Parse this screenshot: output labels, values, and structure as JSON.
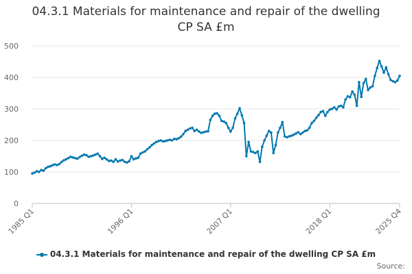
{
  "chart_data": {
    "type": "line",
    "title_line1": "04.3.1 Materials for maintenance and repair of the dwelling",
    "title_line2": "CP SA £m",
    "xlabel": "",
    "ylabel": "",
    "ylim": [
      0,
      500
    ],
    "yticks": [
      0,
      100,
      200,
      300,
      400,
      500
    ],
    "xlim": [
      1985.0,
      2025.75
    ],
    "xticks": [
      {
        "x": 1985.0,
        "label": "1985 Q1"
      },
      {
        "x": 1996.0,
        "label": "1996 Q1"
      },
      {
        "x": 2007.0,
        "label": "2007 Q1"
      },
      {
        "x": 2018.0,
        "label": "2018 Q1"
      },
      {
        "x": 2025.75,
        "label": "2025 Q4"
      }
    ],
    "grid": true,
    "legend_position": "bottom",
    "color": "#0077b0",
    "series": [
      {
        "name": "04.3.1 Materials for maintenance and repair of the dwelling CP SA £m",
        "points": [
          [
            1985.0,
            95
          ],
          [
            1985.25,
            98
          ],
          [
            1985.5,
            102
          ],
          [
            1985.75,
            100
          ],
          [
            1986.0,
            106
          ],
          [
            1986.25,
            104
          ],
          [
            1986.5,
            112
          ],
          [
            1986.75,
            116
          ],
          [
            1987.0,
            118
          ],
          [
            1987.25,
            121
          ],
          [
            1987.5,
            124
          ],
          [
            1987.75,
            122
          ],
          [
            1988.0,
            125
          ],
          [
            1988.25,
            132
          ],
          [
            1988.5,
            137
          ],
          [
            1988.75,
            140
          ],
          [
            1989.0,
            144
          ],
          [
            1989.25,
            148
          ],
          [
            1989.5,
            146
          ],
          [
            1989.75,
            144
          ],
          [
            1990.0,
            142
          ],
          [
            1990.25,
            147
          ],
          [
            1990.5,
            151
          ],
          [
            1990.75,
            155
          ],
          [
            1991.0,
            153
          ],
          [
            1991.25,
            148
          ],
          [
            1991.5,
            150
          ],
          [
            1991.75,
            152
          ],
          [
            1992.0,
            155
          ],
          [
            1992.25,
            158
          ],
          [
            1992.5,
            150
          ],
          [
            1992.75,
            141
          ],
          [
            1993.0,
            145
          ],
          [
            1993.25,
            140
          ],
          [
            1993.5,
            135
          ],
          [
            1993.75,
            136
          ],
          [
            1994.0,
            132
          ],
          [
            1994.25,
            140
          ],
          [
            1994.5,
            133
          ],
          [
            1994.75,
            136
          ],
          [
            1995.0,
            138
          ],
          [
            1995.25,
            132
          ],
          [
            1995.5,
            130
          ],
          [
            1995.75,
            134
          ],
          [
            1996.0,
            150
          ],
          [
            1996.25,
            140
          ],
          [
            1996.5,
            143
          ],
          [
            1996.75,
            145
          ],
          [
            1997.0,
            158
          ],
          [
            1997.25,
            162
          ],
          [
            1997.5,
            165
          ],
          [
            1997.75,
            172
          ],
          [
            1998.0,
            178
          ],
          [
            1998.25,
            185
          ],
          [
            1998.5,
            190
          ],
          [
            1998.75,
            195
          ],
          [
            1999.0,
            198
          ],
          [
            1999.25,
            200
          ],
          [
            1999.5,
            197
          ],
          [
            1999.75,
            198
          ],
          [
            2000.0,
            200
          ],
          [
            2000.25,
            202
          ],
          [
            2000.5,
            200
          ],
          [
            2000.75,
            205
          ],
          [
            2001.0,
            204
          ],
          [
            2001.25,
            207
          ],
          [
            2001.5,
            212
          ],
          [
            2001.75,
            220
          ],
          [
            2002.0,
            230
          ],
          [
            2002.25,
            234
          ],
          [
            2002.5,
            238
          ],
          [
            2002.75,
            240
          ],
          [
            2003.0,
            230
          ],
          [
            2003.25,
            234
          ],
          [
            2003.5,
            228
          ],
          [
            2003.75,
            224
          ],
          [
            2004.0,
            226
          ],
          [
            2004.25,
            228
          ],
          [
            2004.5,
            229
          ],
          [
            2004.75,
            265
          ],
          [
            2005.0,
            278
          ],
          [
            2005.25,
            285
          ],
          [
            2005.5,
            286
          ],
          [
            2005.75,
            278
          ],
          [
            2006.0,
            262
          ],
          [
            2006.25,
            260
          ],
          [
            2006.5,
            255
          ],
          [
            2006.75,
            240
          ],
          [
            2007.0,
            228
          ],
          [
            2007.25,
            240
          ],
          [
            2007.5,
            270
          ],
          [
            2007.75,
            285
          ],
          [
            2008.0,
            302
          ],
          [
            2008.25,
            280
          ],
          [
            2008.5,
            255
          ],
          [
            2008.75,
            150
          ],
          [
            2009.0,
            195
          ],
          [
            2009.25,
            165
          ],
          [
            2009.5,
            163
          ],
          [
            2009.75,
            160
          ],
          [
            2010.0,
            165
          ],
          [
            2010.25,
            132
          ],
          [
            2010.5,
            180
          ],
          [
            2010.75,
            200
          ],
          [
            2011.0,
            215
          ],
          [
            2011.25,
            230
          ],
          [
            2011.5,
            225
          ],
          [
            2011.75,
            160
          ],
          [
            2012.0,
            185
          ],
          [
            2012.25,
            225
          ],
          [
            2012.5,
            240
          ],
          [
            2012.75,
            258
          ],
          [
            2013.0,
            213
          ],
          [
            2013.25,
            210
          ],
          [
            2013.5,
            213
          ],
          [
            2013.75,
            215
          ],
          [
            2014.0,
            218
          ],
          [
            2014.25,
            222
          ],
          [
            2014.5,
            226
          ],
          [
            2014.75,
            220
          ],
          [
            2015.0,
            225
          ],
          [
            2015.25,
            230
          ],
          [
            2015.5,
            232
          ],
          [
            2015.75,
            240
          ],
          [
            2016.0,
            255
          ],
          [
            2016.25,
            262
          ],
          [
            2016.5,
            272
          ],
          [
            2016.75,
            280
          ],
          [
            2017.0,
            290
          ],
          [
            2017.25,
            293
          ],
          [
            2017.5,
            278
          ],
          [
            2017.75,
            290
          ],
          [
            2018.0,
            298
          ],
          [
            2018.25,
            300
          ],
          [
            2018.5,
            305
          ],
          [
            2018.75,
            298
          ],
          [
            2019.0,
            308
          ],
          [
            2019.25,
            310
          ],
          [
            2019.5,
            305
          ],
          [
            2019.75,
            330
          ],
          [
            2020.0,
            340
          ],
          [
            2020.25,
            337
          ],
          [
            2020.5,
            355
          ],
          [
            2020.75,
            345
          ],
          [
            2021.0,
            310
          ],
          [
            2021.25,
            385
          ],
          [
            2021.5,
            338
          ],
          [
            2021.75,
            382
          ],
          [
            2022.0,
            395
          ],
          [
            2022.25,
            360
          ],
          [
            2022.5,
            368
          ],
          [
            2022.75,
            372
          ],
          [
            2023.0,
            405
          ],
          [
            2023.25,
            430
          ],
          [
            2023.5,
            452
          ],
          [
            2023.75,
            435
          ],
          [
            2024.0,
            415
          ],
          [
            2024.25,
            432
          ],
          [
            2024.5,
            410
          ],
          [
            2024.75,
            392
          ],
          [
            2025.0,
            388
          ],
          [
            2025.25,
            385
          ],
          [
            2025.5,
            390
          ],
          [
            2025.75,
            405
          ]
        ]
      }
    ]
  },
  "source_label": "Source:"
}
